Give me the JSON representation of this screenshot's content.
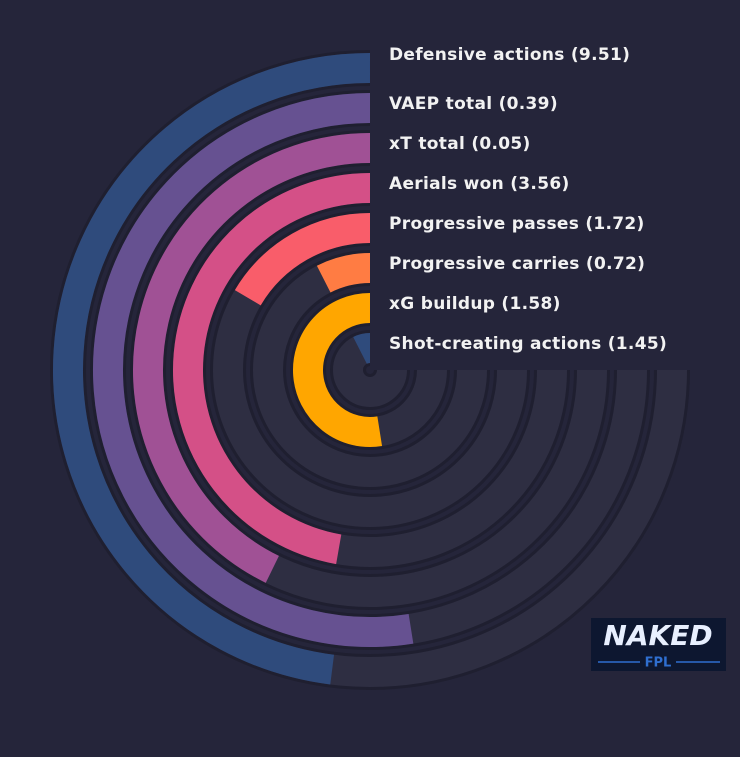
{
  "chart_data": {
    "type": "radial-bar",
    "categories": [
      "Defensive actions (9.51)",
      "VAEP total (0.39)",
      "xT total (0.05)",
      "Aerials won (3.56)",
      "Progressive passes (1.72)",
      "Progressive carries (0.72)",
      "xG buildup (1.58)",
      "Shot-creating actions (1.45)"
    ],
    "values": [
      64,
      70,
      57,
      63,
      22,
      10,
      70,
      10
    ],
    "colors": [
      "#2f4b7c",
      "#665191",
      "#a05195",
      "#d45087",
      "#f95d6a",
      "#ff7c43",
      "#ffa600",
      "#2f4b7c"
    ],
    "ylim": [
      0,
      100
    ]
  },
  "logo": {
    "title": "NAKED",
    "subtitle": "FPL"
  }
}
